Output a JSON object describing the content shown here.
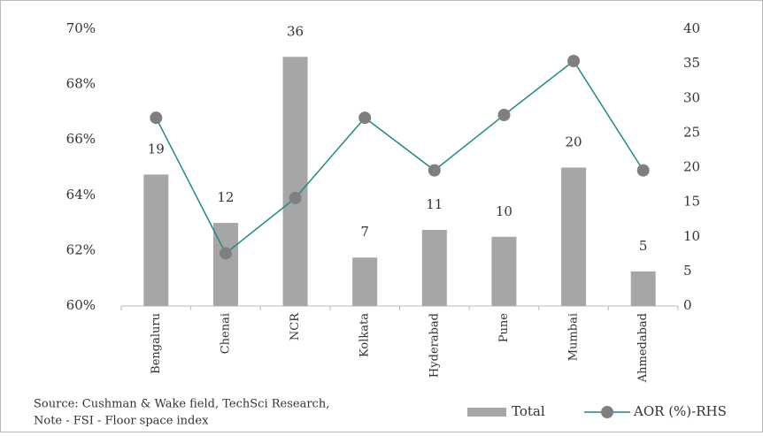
{
  "chart_data": {
    "type": "bar-line",
    "categories": [
      "Bengaluru",
      "Chenai",
      "NCR",
      "Kolkata",
      "Hyderabad",
      "Pune",
      "Mumbai",
      "Ahmedabad"
    ],
    "series": [
      {
        "name": "Total",
        "type": "bar",
        "axis": "y2",
        "color": "#a6a6a6",
        "values": [
          19,
          12,
          36,
          7,
          11,
          10,
          20,
          5
        ]
      },
      {
        "name": "AOR (%)-RHS",
        "type": "line",
        "color": "#1a8a8a",
        "marker_color": "#7f7f7f",
        "values": [
          66.8,
          61.9,
          63.9,
          66.8,
          64.9,
          66.9,
          68.85,
          64.9
        ]
      }
    ],
    "ylim": [
      60,
      70
    ],
    "yticks": [
      {
        "value": 60,
        "label": "60%"
      },
      {
        "value": 62,
        "label": "62%"
      },
      {
        "value": 64,
        "label": "64%"
      },
      {
        "value": 66,
        "label": "66%"
      },
      {
        "value": 68,
        "label": "68%"
      },
      {
        "value": 70,
        "label": "70%"
      }
    ],
    "y2lim": [
      0,
      40
    ],
    "y2ticks": [
      0,
      5,
      10,
      15,
      20,
      25,
      30,
      35,
      40
    ],
    "notes": [
      "Source: Cushman & Wake field, TechSci Research,",
      "Note - FSI - Floor space index"
    ]
  }
}
